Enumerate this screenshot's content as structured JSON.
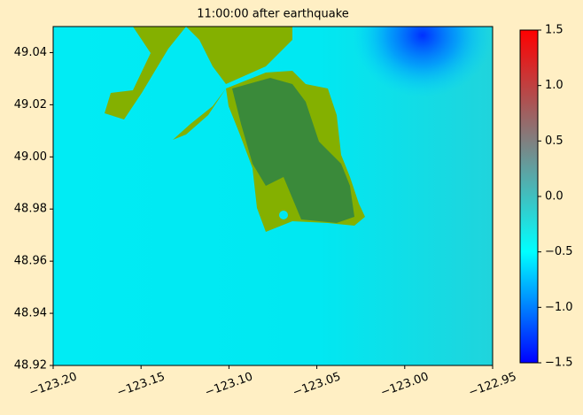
{
  "chart_data": {
    "type": "heatmap",
    "title": "11:00:00 after earthquake",
    "xlim": [
      -123.2,
      -122.95
    ],
    "xticks": [
      {
        "value": -123.2,
        "label": "−123.20"
      },
      {
        "value": -123.15,
        "label": "−123.15"
      },
      {
        "value": -123.1,
        "label": "−123.10"
      },
      {
        "value": -123.05,
        "label": "−123.05"
      },
      {
        "value": -123.0,
        "label": "−123.00"
      },
      {
        "value": -122.95,
        "label": "−122.95"
      }
    ],
    "ylim": [
      48.92,
      49.05
    ],
    "yticks": [
      48.92,
      48.94,
      48.96,
      48.98,
      {
        "value": 49.0,
        "label": "49.00"
      },
      49.02,
      49.04
    ],
    "clim": [
      -1.5,
      1.5
    ],
    "cticks": [
      {
        "value": -1.5,
        "label": "−1.5"
      },
      {
        "value": -1.0,
        "label": "−1.0"
      },
      {
        "value": -0.5,
        "label": "−0.5"
      },
      {
        "value": 0.0,
        "label": "0.0"
      },
      0.5,
      {
        "value": 1.0,
        "label": "1.0"
      },
      1.5
    ],
    "colormap": [
      "#0000ff",
      "#00ffff",
      "#808080",
      "#ff0000"
    ]
  }
}
